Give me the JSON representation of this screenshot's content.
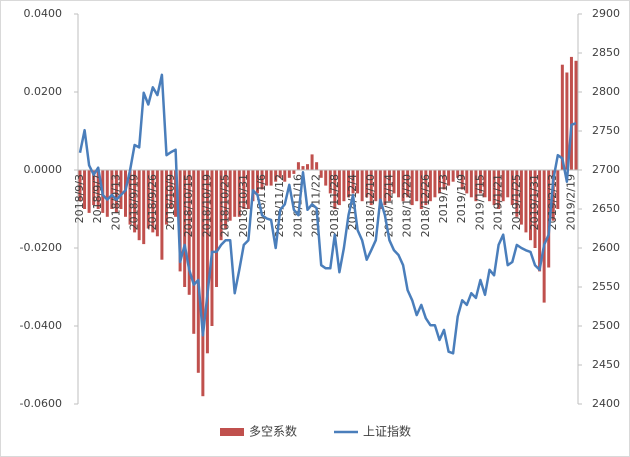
{
  "chart_data": {
    "type": "bar",
    "categories": [
      "2018/9/3",
      null,
      null,
      null,
      "2018/9/7",
      null,
      null,
      null,
      "2018/9/13",
      null,
      null,
      null,
      "2018/9/19",
      null,
      null,
      null,
      "2018/9/26",
      null,
      null,
      null,
      "2018/10/9",
      null,
      null,
      null,
      "2018/10/15",
      null,
      null,
      null,
      "2018/10/19",
      null,
      null,
      null,
      "2018/10/25",
      null,
      null,
      null,
      "2018/10/31",
      null,
      null,
      null,
      "2018/11/6",
      null,
      null,
      null,
      "2018/11/12",
      null,
      null,
      null,
      "2018/11/16",
      null,
      null,
      null,
      "2018/11/22",
      null,
      null,
      null,
      "2018/11/28",
      null,
      null,
      null,
      "2018/12/4",
      null,
      null,
      null,
      "2018/12/10",
      null,
      null,
      null,
      "2018/12/14",
      null,
      null,
      null,
      "2018/12/20",
      null,
      null,
      null,
      "2018/12/26",
      null,
      null,
      null,
      "2019/1/3",
      null,
      null,
      null,
      "2019/1/9",
      null,
      null,
      null,
      "2019/1/15",
      null,
      null,
      null,
      "2019/1/21",
      null,
      null,
      null,
      "2019/1/25",
      null,
      null,
      null,
      "2019/1/31",
      null,
      null,
      null,
      "2019/2/13",
      null,
      null,
      null,
      "2019/2/19",
      null
    ],
    "series": [
      {
        "name": "多空系数",
        "type": "bar",
        "color": "#c0504d",
        "values": [
          -0.008,
          -0.01,
          -0.011,
          -0.009,
          -0.01,
          -0.011,
          -0.012,
          -0.01,
          -0.011,
          -0.01,
          -0.012,
          -0.014,
          -0.016,
          -0.018,
          -0.019,
          -0.015,
          -0.016,
          -0.017,
          -0.023,
          -0.014,
          -0.01,
          -0.012,
          -0.026,
          -0.03,
          -0.032,
          -0.042,
          -0.052,
          -0.058,
          -0.047,
          -0.04,
          -0.03,
          -0.018,
          -0.015,
          -0.013,
          -0.012,
          -0.012,
          -0.01,
          -0.01,
          -0.008,
          -0.006,
          -0.005,
          -0.004,
          -0.004,
          -0.003,
          -0.002,
          -0.003,
          -0.002,
          -0.001,
          0.002,
          0.001,
          0.0015,
          0.004,
          0.002,
          -0.002,
          -0.004,
          -0.006,
          -0.01,
          -0.009,
          -0.008,
          -0.007,
          -0.006,
          -0.006,
          -0.008,
          -0.007,
          -0.009,
          -0.008,
          -0.01,
          -0.009,
          -0.008,
          -0.006,
          -0.007,
          -0.008,
          -0.007,
          -0.009,
          -0.008,
          -0.01,
          -0.009,
          -0.008,
          -0.007,
          -0.006,
          -0.005,
          -0.004,
          -0.003,
          -0.002,
          -0.005,
          -0.006,
          -0.007,
          -0.008,
          -0.006,
          -0.007,
          -0.008,
          -0.009,
          -0.01,
          -0.008,
          -0.007,
          -0.009,
          -0.012,
          -0.014,
          -0.016,
          -0.018,
          -0.02,
          -0.026,
          -0.034,
          -0.025,
          -0.013,
          -0.01,
          0.027,
          0.025,
          0.029,
          0.028
        ]
      },
      {
        "name": "上证指数",
        "type": "line",
        "axis": "y2",
        "color": "#4a7ebb",
        "values": [
          2722,
          2751,
          2706,
          2694,
          2703,
          2668,
          2662,
          2668,
          2662,
          2668,
          2674,
          2700,
          2732,
          2729,
          2799,
          2784,
          2806,
          2796,
          2822,
          2719,
          2723,
          2726,
          2582,
          2604,
          2572,
          2553,
          2559,
          2488,
          2540,
          2595,
          2595,
          2604,
          2610,
          2610,
          2542,
          2572,
          2604,
          2610,
          2674,
          2668,
          2642,
          2638,
          2636,
          2600,
          2649,
          2656,
          2681,
          2649,
          2642,
          2697,
          2649,
          2656,
          2651,
          2578,
          2574,
          2574,
          2617,
          2569,
          2600,
          2642,
          2668,
          2623,
          2610,
          2585,
          2597,
          2610,
          2662,
          2642,
          2610,
          2597,
          2591,
          2578,
          2546,
          2533,
          2514,
          2527,
          2510,
          2501,
          2501,
          2482,
          2495,
          2467,
          2465,
          2512,
          2533,
          2527,
          2542,
          2536,
          2559,
          2540,
          2572,
          2565,
          2604,
          2617,
          2578,
          2582,
          2604,
          2600,
          2597,
          2595,
          2578,
          2572,
          2604,
          2617,
          2687,
          2719,
          2715,
          2685,
          2758,
          2760
        ]
      }
    ],
    "ylim": [
      -0.06,
      0.04
    ],
    "yticks": [
      {
        "value": -0.06,
        "label": "-0.0600"
      },
      {
        "value": -0.04,
        "label": "-0.0400"
      },
      {
        "value": -0.02,
        "label": "-0.0200"
      },
      {
        "value": 0,
        "label": "0.0000"
      },
      {
        "value": 0.02,
        "label": "0.0200"
      },
      {
        "value": 0.04,
        "label": "0.0400"
      }
    ],
    "y2lim": [
      2400,
      2900
    ],
    "y2ticks": [
      2400,
      2450,
      2500,
      2550,
      2600,
      2650,
      2700,
      2750,
      2800,
      2850,
      2900
    ],
    "legend": "bottom"
  }
}
